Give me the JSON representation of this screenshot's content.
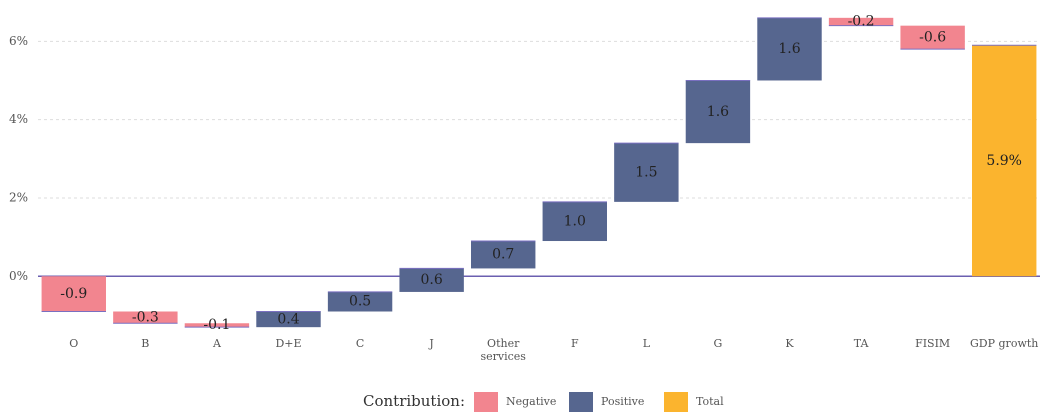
{
  "chart_data": {
    "type": "waterfall",
    "categories": [
      "O",
      "B",
      "A",
      "D+E",
      "C",
      "J",
      "Other services",
      "F",
      "L",
      "G",
      "K",
      "TA",
      "FISIM"
    ],
    "values": [
      -0.9,
      -0.3,
      -0.1,
      0.4,
      0.5,
      0.6,
      0.7,
      1.0,
      1.5,
      1.6,
      1.6,
      -0.2,
      -0.6
    ],
    "value_labels": [
      "-0.9",
      "-0.3",
      "-0.1",
      "0.4",
      "0.5",
      "0.6",
      "0.7",
      "1.0",
      "1.5",
      "1.6",
      "1.6",
      "-0.2",
      "-0.6"
    ],
    "total": {
      "category": "GDP growth",
      "value": 5.9,
      "value_label": "5.9%"
    },
    "ylim": [
      -1.5,
      6.8
    ],
    "yticks": [
      {
        "value": 0,
        "label": "0%"
      },
      {
        "value": 2,
        "label": "2%"
      },
      {
        "value": 4,
        "label": "4%"
      },
      {
        "value": 6,
        "label": "6%"
      }
    ],
    "grid": true,
    "legend": {
      "title": "Contribution:",
      "position": "bottom",
      "items": [
        {
          "name": "Negative",
          "color": "#f2858f"
        },
        {
          "name": "Positive",
          "color": "#56668f"
        },
        {
          "name": "Total",
          "color": "#fbb42e"
        }
      ]
    }
  }
}
